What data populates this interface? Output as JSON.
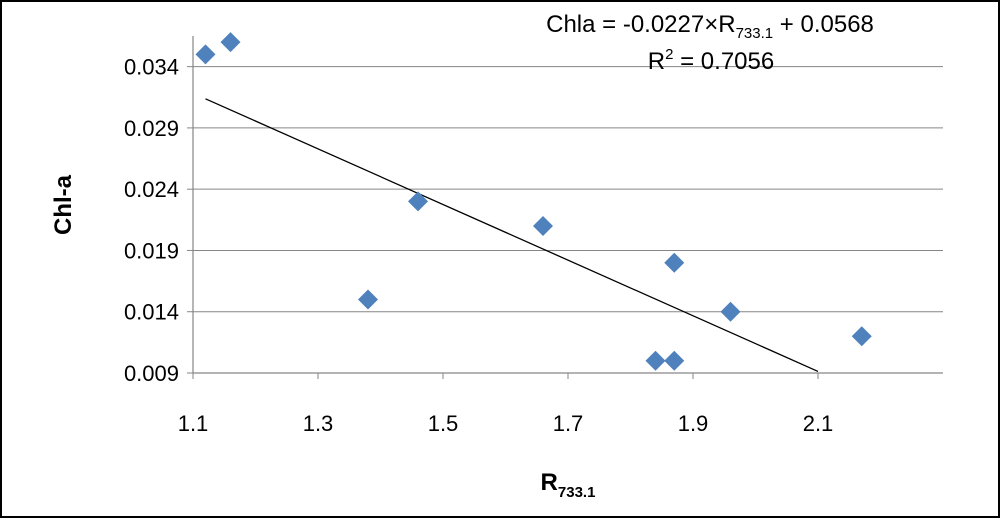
{
  "chart_data": {
    "type": "scatter",
    "xlabel_main": "R",
    "xlabel_sub": "733.1",
    "ylabel": "Chl-a",
    "x_ticks": [
      "1.1",
      "1.3",
      "1.5",
      "1.7",
      "1.9",
      "2.1"
    ],
    "y_ticks": [
      "0.009",
      "0.014",
      "0.019",
      "0.024",
      "0.029",
      "0.034"
    ],
    "xlim": [
      1.1,
      2.3
    ],
    "ylim": [
      0.009,
      0.0365
    ],
    "grid": "horizontal",
    "legend": "none",
    "marker_color": "#4F81BD",
    "points": [
      {
        "x": 1.12,
        "y": 0.035
      },
      {
        "x": 1.16,
        "y": 0.036
      },
      {
        "x": 1.38,
        "y": 0.015
      },
      {
        "x": 1.46,
        "y": 0.023
      },
      {
        "x": 1.66,
        "y": 0.021
      },
      {
        "x": 1.84,
        "y": 0.01
      },
      {
        "x": 1.87,
        "y": 0.01
      },
      {
        "x": 1.87,
        "y": 0.018
      },
      {
        "x": 1.96,
        "y": 0.014
      },
      {
        "x": 2.17,
        "y": 0.012
      }
    ],
    "trendline": {
      "slope": -0.0227,
      "intercept": 0.0568,
      "x_start": 1.12,
      "x_end": 2.1
    },
    "equation": {
      "prefix": "Chla = -0.0227",
      "times_symbol": "×",
      "var_main": "R",
      "var_sub": "733.1",
      "suffix": " + 0.0568",
      "r2_main": "R",
      "r2_sup": "2",
      "r2_suffix": " = 0.7056"
    }
  }
}
